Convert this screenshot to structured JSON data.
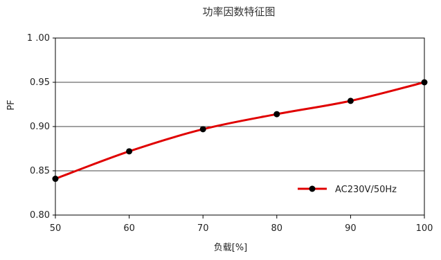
{
  "chart_data": {
    "type": "line",
    "title": "功率因数特征图",
    "xlabel": "负载[%]",
    "ylabel": "PF",
    "x": [
      50,
      60,
      70,
      80,
      90,
      100
    ],
    "series": [
      {
        "name": "AC230V/50Hz",
        "values": [
          0.841,
          0.872,
          0.897,
          0.914,
          0.929,
          0.95
        ],
        "color": "#e00000"
      }
    ],
    "xlim": [
      50,
      100
    ],
    "ylim": [
      0.8,
      1.0
    ],
    "x_ticks": [
      "50",
      "60",
      "70",
      "80",
      "90",
      "100"
    ],
    "y_ticks": [
      "0.80",
      "0.85",
      "0.90",
      "0.95",
      "1 .00"
    ],
    "grid": "horizontal",
    "legend_position": "bottom-right",
    "marker_color": "#000000"
  }
}
